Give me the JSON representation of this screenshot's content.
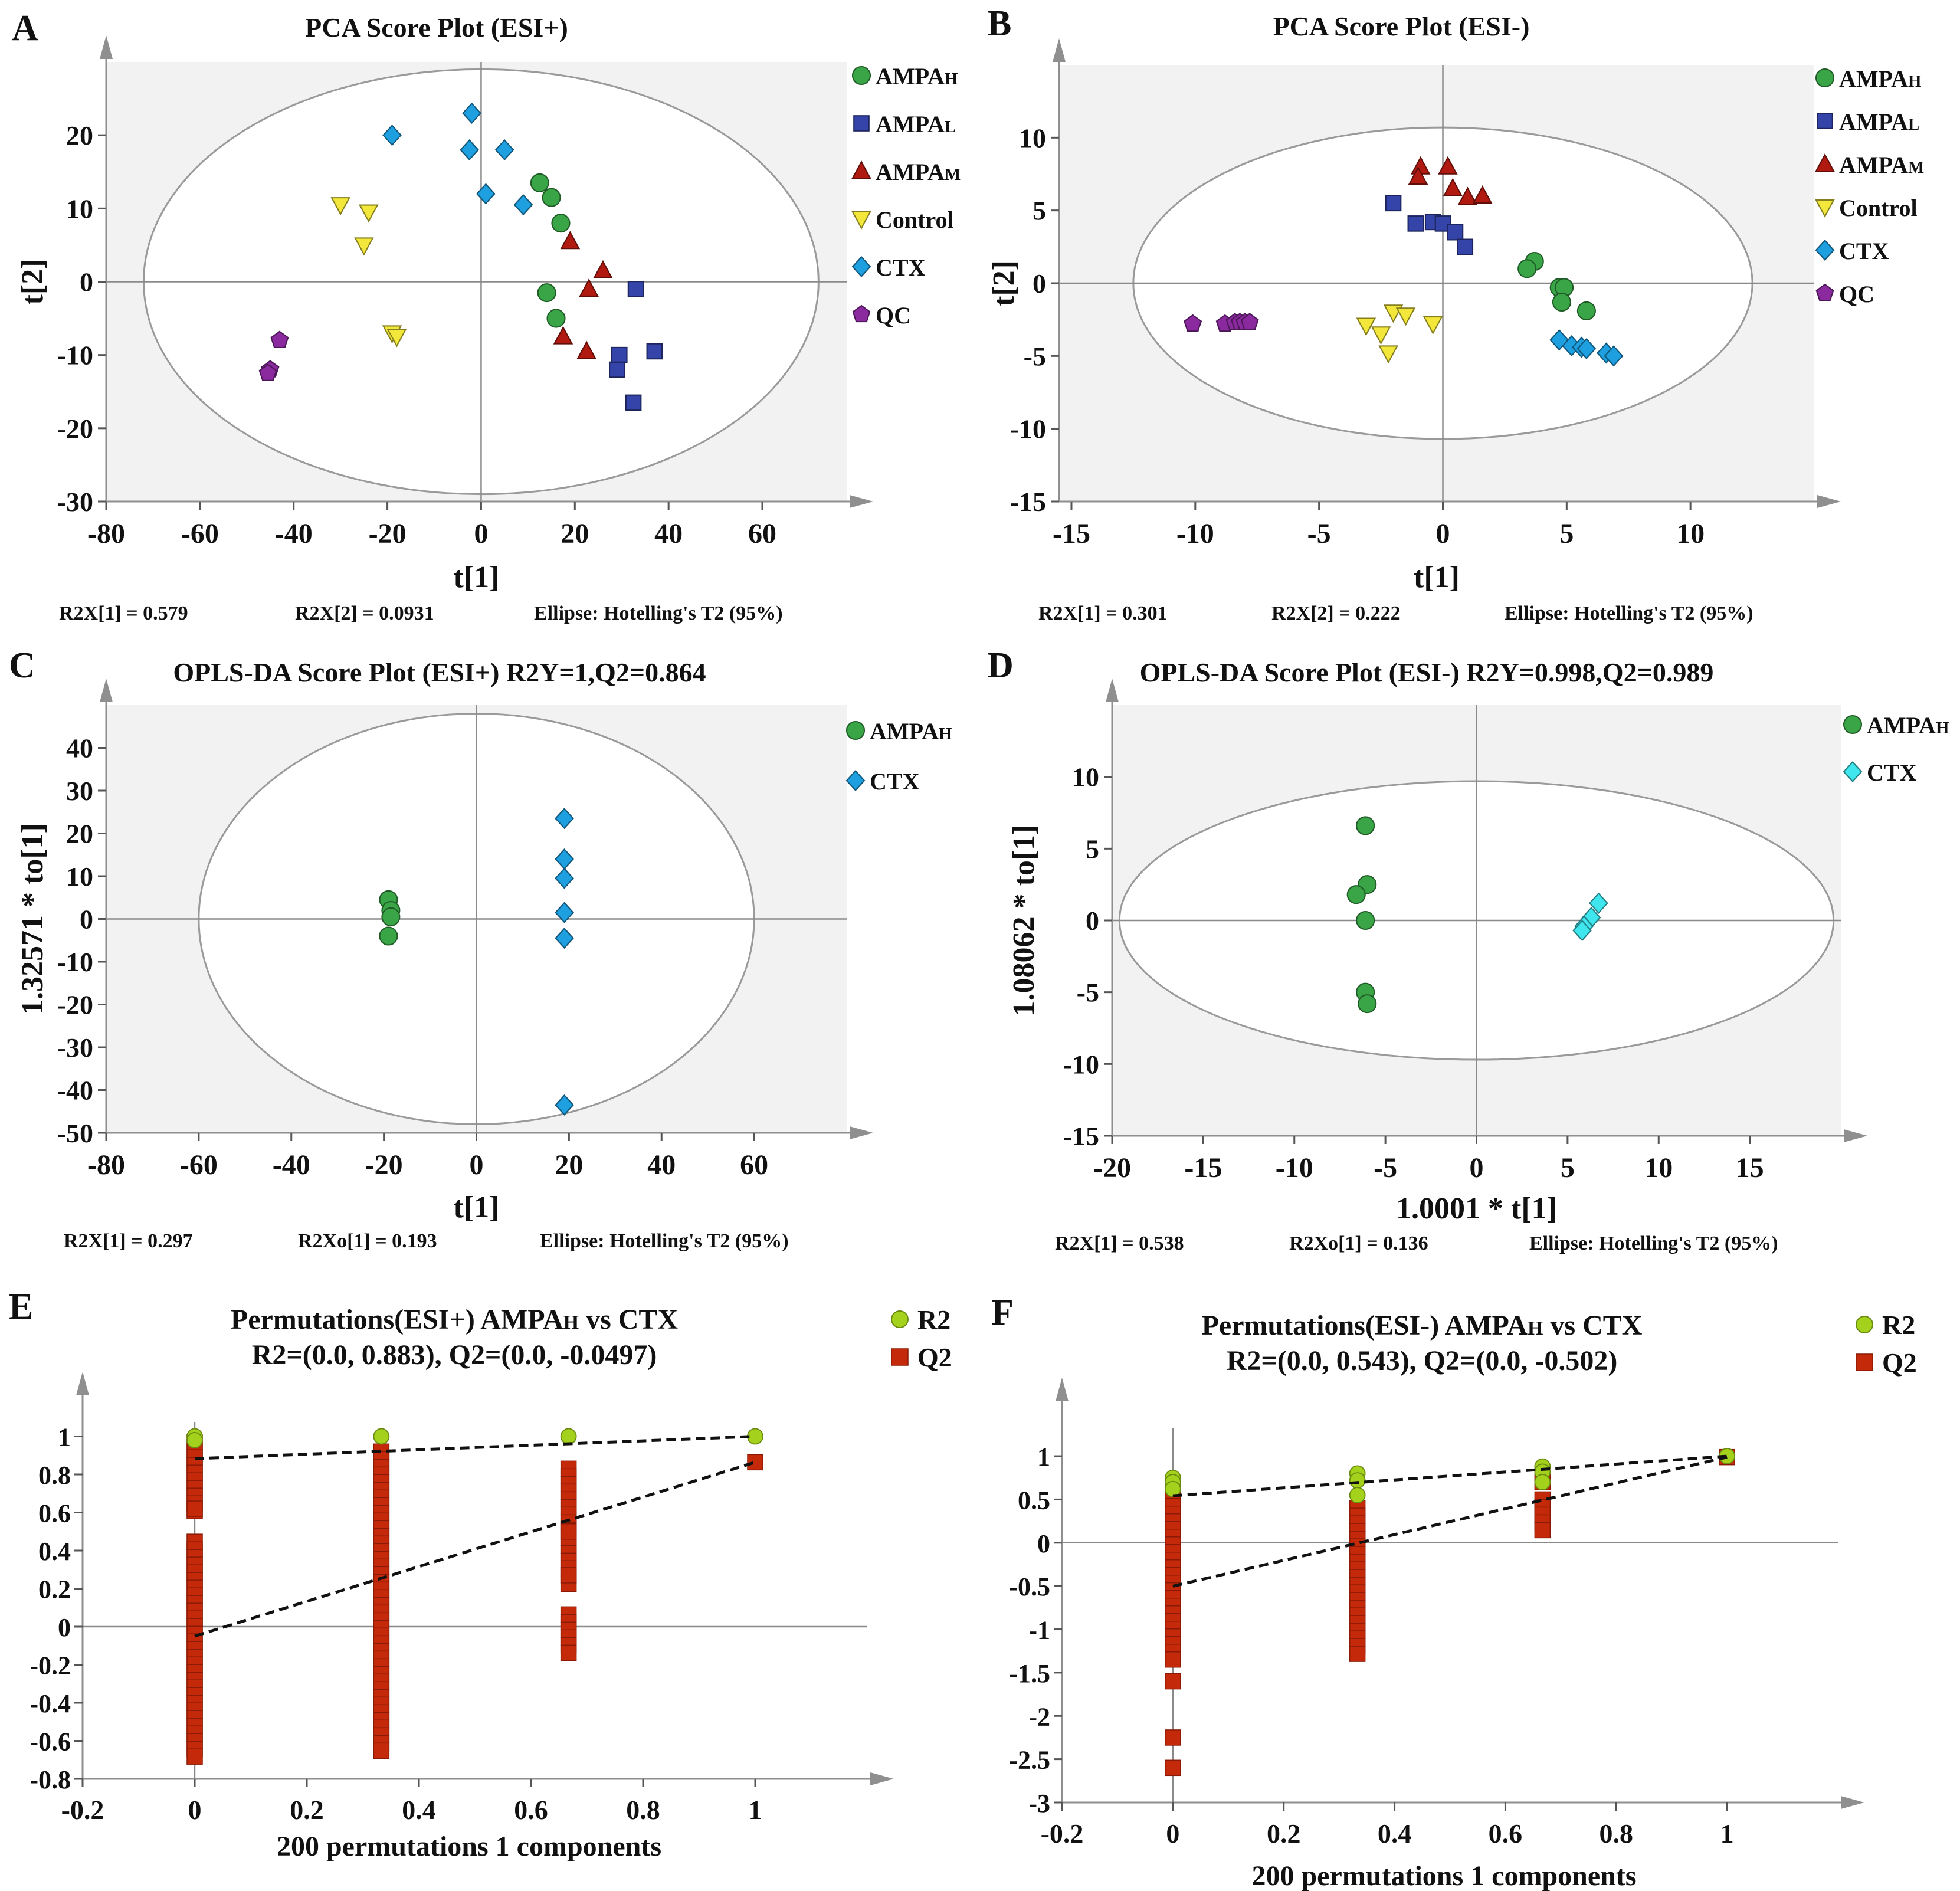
{
  "figure": {
    "panels": [
      {
        "letter": "A",
        "title": "PCA Score Plot (ESI+)",
        "xlabel": "t[1]",
        "ylabel": "t[2]",
        "xticks": [
          "-80",
          "-60",
          "-40",
          "-20",
          "0",
          "20",
          "40",
          "60"
        ],
        "yticks": [
          "20",
          "10",
          "0",
          "-10",
          "-20",
          "-30"
        ],
        "footer": [
          "R2X[1] = 0.579",
          "R2X[2] = 0.0931",
          "Ellipse: Hotelling's T2 (95%)"
        ],
        "legend": [
          {
            "base": "AMPA",
            "sub": "H"
          },
          {
            "base": "AMPA",
            "sub": "L"
          },
          {
            "base": "AMPA",
            "sub": "M"
          },
          {
            "base": "Control",
            "sub": ""
          },
          {
            "base": "CTX",
            "sub": ""
          },
          {
            "base": "QC",
            "sub": ""
          }
        ]
      },
      {
        "letter": "B",
        "title": "PCA Score Plot  (ESI-)",
        "xlabel": "t[1]",
        "ylabel": "t[2]",
        "xticks": [
          "-15",
          "-10",
          "-5",
          "0",
          "5",
          "10"
        ],
        "yticks": [
          "10",
          "5",
          "0",
          "-5",
          "-10",
          "-15"
        ],
        "footer": [
          "R2X[1] = 0.301",
          "R2X[2] = 0.222",
          "Ellipse: Hotelling's T2 (95%)"
        ],
        "legend": [
          {
            "base": "AMPA",
            "sub": "H"
          },
          {
            "base": "AMPA",
            "sub": "L"
          },
          {
            "base": "AMPA",
            "sub": "M"
          },
          {
            "base": "Control",
            "sub": ""
          },
          {
            "base": "CTX",
            "sub": ""
          },
          {
            "base": "QC",
            "sub": ""
          }
        ]
      },
      {
        "letter": "C",
        "title": "OPLS-DA Score Plot (ESI+) R2Y=1,Q2=0.864",
        "xlabel": "t[1]",
        "ylabel": "1.32571 * to[1]",
        "xticks": [
          "-80",
          "-60",
          "-40",
          "-20",
          "0",
          "20",
          "40",
          "60"
        ],
        "yticks": [
          "40",
          "30",
          "20",
          "10",
          "0",
          "-10",
          "-20",
          "-30",
          "-40",
          "-50"
        ],
        "footer": [
          "R2X[1] = 0.297",
          "R2Xo[1] = 0.193",
          "Ellipse: Hotelling's T2 (95%)"
        ],
        "legend": [
          {
            "base": "AMPA",
            "sub": "H"
          },
          {
            "base": "CTX",
            "sub": ""
          }
        ]
      },
      {
        "letter": "D",
        "title": "OPLS-DA Score Plot (ESI-) R2Y=0.998,Q2=0.989",
        "xlabel": "1.0001 * t[1]",
        "ylabel": "1.08062 * to[1]",
        "xticks": [
          "-20",
          "-15",
          "-10",
          "-5",
          "0",
          "5",
          "10",
          "15"
        ],
        "yticks": [
          "10",
          "5",
          "0",
          "-5",
          "-10",
          "-15"
        ],
        "footer": [
          "R2X[1] = 0.538",
          "R2Xo[1] = 0.136",
          "Ellipse: Hotelling's T2 (95%)"
        ],
        "legend": [
          {
            "base": "AMPA",
            "sub": "H"
          },
          {
            "base": "CTX",
            "sub": ""
          }
        ]
      },
      {
        "letter": "E",
        "title1": "Permutations(ESI+) AMPA",
        "title1_sub": "H",
        "title1_tail": "  vs CTX",
        "title2": "R2=(0.0, 0.883), Q2=(0.0, -0.0497)",
        "xlabel": "200 permutations 1 components",
        "xticks": [
          "-0.2",
          "0",
          "0.2",
          "0.4",
          "0.6",
          "0.8",
          "1"
        ],
        "yticks": [
          "1",
          "0.8",
          "0.6",
          "0.4",
          "0.2",
          "0",
          "-0.2",
          "-0.4",
          "-0.6",
          "-0.8"
        ],
        "legend": [
          {
            "base": "R2",
            "sub": ""
          },
          {
            "base": "Q2",
            "sub": ""
          }
        ]
      },
      {
        "letter": "F",
        "title1": "Permutations(ESI-) AMPA",
        "title1_sub": "H",
        "title1_tail": "  vs CTX",
        "title2": "R2=(0.0, 0.543), Q2=(0.0, -0.502)",
        "xlabel": "200 permutations 1 components",
        "xticks": [
          "-0.2",
          "0",
          "0.2",
          "0.4",
          "0.6",
          "0.8",
          "1"
        ],
        "yticks": [
          "1",
          "0.5",
          "0",
          "-0.5",
          "-1",
          "-1.5",
          "-2",
          "-2.5",
          "-3"
        ],
        "legend": [
          {
            "base": "R2",
            "sub": ""
          },
          {
            "base": "Q2",
            "sub": ""
          }
        ]
      }
    ]
  },
  "colors": {
    "AMPA_H": "#3aa546",
    "AMPA_L": "#3444a8",
    "AMPA_M": "#b01a10",
    "Control": "#f2e73a",
    "CTX": "#1e9fe0",
    "CTX_D": "#3fe6ee",
    "QC": "#8a2a9e",
    "R2": "#a4d21c",
    "Q2": "#c42a0a",
    "plot_bg": "#f2f2f2"
  },
  "chart_data": [
    {
      "type": "scatter",
      "id": "A",
      "title": "PCA Score Plot (ESI+)",
      "xlabel": "t[1]",
      "ylabel": "t[2]",
      "xlim": [
        -80,
        78
      ],
      "ylim": [
        -30,
        30
      ],
      "ellipse": {
        "cx": 0,
        "cy": 0,
        "rx": 72,
        "ry": 29
      },
      "series": [
        {
          "name": "AMPA_H",
          "marker": "circle",
          "points": [
            [
              12.5,
              13.5
            ],
            [
              15,
              11.5
            ],
            [
              17,
              8
            ],
            [
              14,
              -1.5
            ],
            [
              16,
              -5
            ]
          ]
        },
        {
          "name": "AMPA_L",
          "marker": "square",
          "points": [
            [
              33,
              -1
            ],
            [
              37,
              -9.5
            ],
            [
              29.5,
              -10
            ],
            [
              29,
              -12
            ],
            [
              32.5,
              -16.5
            ]
          ]
        },
        {
          "name": "AMPA_M",
          "marker": "triangle",
          "points": [
            [
              19,
              5.5
            ],
            [
              26,
              1.5
            ],
            [
              23,
              -1
            ],
            [
              17.5,
              -7.5
            ],
            [
              22.5,
              -9.5
            ]
          ]
        },
        {
          "name": "Control",
          "marker": "triangle-down",
          "points": [
            [
              -30,
              10.5
            ],
            [
              -24,
              9.5
            ],
            [
              -25,
              5
            ],
            [
              -19,
              -7
            ],
            [
              -18,
              -7.5
            ]
          ]
        },
        {
          "name": "CTX",
          "marker": "diamond",
          "points": [
            [
              -2,
              23
            ],
            [
              -19,
              20
            ],
            [
              5,
              18
            ],
            [
              -2.5,
              18
            ],
            [
              1,
              12
            ],
            [
              9,
              10.5
            ]
          ]
        },
        {
          "name": "QC",
          "marker": "pentagon",
          "points": [
            [
              -43,
              -8
            ],
            [
              -45,
              -12
            ],
            [
              -45.5,
              -12.5
            ]
          ]
        }
      ]
    },
    {
      "type": "scatter",
      "id": "B",
      "title": "PCA Score Plot  (ESI-)",
      "xlabel": "t[1]",
      "ylabel": "t[2]",
      "xlim": [
        -15.5,
        15
      ],
      "ylim": [
        -15,
        15
      ],
      "ellipse": {
        "cx": 0,
        "cy": 0,
        "rx": 12.5,
        "ry": 10.7
      },
      "series": [
        {
          "name": "AMPA_H",
          "marker": "circle",
          "points": [
            [
              3.7,
              1.5
            ],
            [
              3.4,
              1
            ],
            [
              4.7,
              -0.3
            ],
            [
              4.9,
              -0.3
            ],
            [
              4.8,
              -1.3
            ],
            [
              5.8,
              -1.9
            ]
          ]
        },
        {
          "name": "AMPA_L",
          "marker": "square",
          "points": [
            [
              -2,
              5.5
            ],
            [
              -0.4,
              4.2
            ],
            [
              -1.1,
              4.1
            ],
            [
              0,
              4.1
            ],
            [
              0.5,
              3.5
            ],
            [
              0.9,
              2.5
            ]
          ]
        },
        {
          "name": "AMPA_M",
          "marker": "triangle",
          "points": [
            [
              -0.9,
              8
            ],
            [
              0.2,
              8
            ],
            [
              -1,
              7.3
            ],
            [
              0.4,
              6.5
            ],
            [
              1,
              5.9
            ],
            [
              1.6,
              6
            ]
          ]
        },
        {
          "name": "Control",
          "marker": "triangle-down",
          "points": [
            [
              -2,
              -2
            ],
            [
              -1.5,
              -2.2
            ],
            [
              -3.1,
              -2.9
            ],
            [
              -0.4,
              -2.8
            ],
            [
              -2.5,
              -3.5
            ],
            [
              -2.2,
              -4.8
            ]
          ]
        },
        {
          "name": "CTX",
          "marker": "diamond",
          "points": [
            [
              4.7,
              -3.9
            ],
            [
              5.2,
              -4.3
            ],
            [
              5.6,
              -4.4
            ],
            [
              5.8,
              -4.5
            ],
            [
              6.6,
              -4.8
            ],
            [
              6.9,
              -5
            ]
          ]
        },
        {
          "name": "QC",
          "marker": "pentagon",
          "points": [
            [
              -10.1,
              -2.8
            ],
            [
              -8.8,
              -2.8
            ],
            [
              -8.4,
              -2.7
            ],
            [
              -8.2,
              -2.7
            ],
            [
              -8,
              -2.7
            ],
            [
              -7.8,
              -2.7
            ]
          ]
        }
      ]
    },
    {
      "type": "scatter",
      "id": "C",
      "title": "OPLS-DA Score Plot (ESI+) R2Y=1,Q2=0.864",
      "xlabel": "t[1]",
      "ylabel": "1.32571 * to[1]",
      "xlim": [
        -80,
        80
      ],
      "ylim": [
        -50,
        50
      ],
      "ellipse": {
        "cx": 0,
        "cy": 0,
        "rx": 60,
        "ry": 48
      },
      "series": [
        {
          "name": "AMPA_H",
          "marker": "circle",
          "points": [
            [
              -19,
              4.5
            ],
            [
              -18.5,
              2
            ],
            [
              -18.5,
              0.5
            ],
            [
              -19,
              -4
            ]
          ]
        },
        {
          "name": "CTX",
          "marker": "diamond",
          "points": [
            [
              19,
              23.5
            ],
            [
              19,
              14
            ],
            [
              19,
              9.5
            ],
            [
              19,
              1.5
            ],
            [
              19,
              -4.5
            ],
            [
              19,
              -43.5
            ]
          ]
        }
      ]
    },
    {
      "type": "scatter",
      "id": "D",
      "title": "OPLS-DA Score Plot (ESI-) R2Y=0.998,Q2=0.989",
      "xlabel": "1.0001 * t[1]",
      "ylabel": "1.08062 * to[1]",
      "xlim": [
        -20,
        20
      ],
      "ylim": [
        -15,
        15
      ],
      "ellipse": {
        "cx": 0,
        "cy": 0,
        "rx": 19.6,
        "ry": 9.7
      },
      "series": [
        {
          "name": "AMPA_H",
          "marker": "circle",
          "points": [
            [
              -6.1,
              6.6
            ],
            [
              -6,
              2.5
            ],
            [
              -6.6,
              1.8
            ],
            [
              -6.1,
              0
            ],
            [
              -6.1,
              -5
            ],
            [
              -6,
              -5.8
            ]
          ]
        },
        {
          "name": "CTX_D",
          "marker": "diamond",
          "points": [
            [
              6.7,
              1.2
            ],
            [
              6.3,
              0.2
            ],
            [
              5.9,
              -0.4
            ],
            [
              5.8,
              -0.7
            ]
          ]
        }
      ]
    },
    {
      "type": "scatter",
      "id": "E",
      "title": "Permutations(ESI+) AMPAH  vs CTX",
      "subtitle": "R2=(0.0, 0.883), Q2=(0.0, -0.0497)",
      "xlabel": "200 permutations 1 components",
      "xlim": [
        -0.2,
        1.2
      ],
      "ylim": [
        -0.8,
        1.2
      ],
      "R2_intercept": 0.883,
      "Q2_intercept": -0.0497,
      "R2_points": [
        [
          0,
          1.0
        ],
        [
          0,
          0.98
        ],
        [
          0.333,
          1.0
        ],
        [
          0.667,
          1.0
        ],
        [
          1,
          1.0
        ]
      ],
      "Q2_columns": [
        {
          "x": 0,
          "from": -0.72,
          "to": 0.97
        },
        {
          "x": 0.333,
          "from": -0.69,
          "to": 0.92
        },
        {
          "x": 0.667,
          "from": -0.16,
          "to": 0.83
        }
      ],
      "Q2_points": [
        [
          0,
          0.62
        ],
        [
          0.667,
          0.27
        ],
        [
          0.667,
          0.5
        ],
        [
          1,
          0.864
        ]
      ],
      "Q2_gaps": [
        [
          0,
          0.46,
          0.58
        ],
        [
          0,
          -0.44,
          -0.48
        ],
        [
          0.333,
          0.44,
          0.47
        ],
        [
          0.333,
          -0.43,
          -0.47
        ],
        [
          0.667,
          0.1,
          0.2
        ]
      ]
    },
    {
      "type": "scatter",
      "id": "F",
      "title": "Permutations(ESI-) AMPAH  vs CTX",
      "subtitle": "R2=(0.0, 0.543), Q2=(0.0, -0.502)",
      "xlabel": "200 permutations 1 components",
      "xlim": [
        -0.2,
        1.2
      ],
      "ylim": [
        -3,
        1.6
      ],
      "R2_intercept": 0.543,
      "Q2_intercept": -0.502,
      "R2_points": [
        [
          0,
          0.75
        ],
        [
          0,
          0.7
        ],
        [
          0,
          0.62
        ],
        [
          0.333,
          0.8
        ],
        [
          0.333,
          0.72
        ],
        [
          0.333,
          0.55
        ],
        [
          0.667,
          0.88
        ],
        [
          0.667,
          0.82
        ],
        [
          0.667,
          0.7
        ],
        [
          1,
          1.0
        ]
      ],
      "Q2_columns": [
        {
          "x": 0,
          "from": -1.35,
          "to": 0.6
        },
        {
          "x": 0.333,
          "from": -1.3,
          "to": 0.4
        },
        {
          "x": 0.667,
          "from": 0.1,
          "to": 0.5
        }
      ],
      "Q2_points": [
        [
          0,
          -1.6
        ],
        [
          0,
          -2.25
        ],
        [
          0,
          -2.6
        ],
        [
          0.667,
          0.7
        ],
        [
          1,
          0.989
        ]
      ],
      "Q2_gaps": []
    }
  ]
}
